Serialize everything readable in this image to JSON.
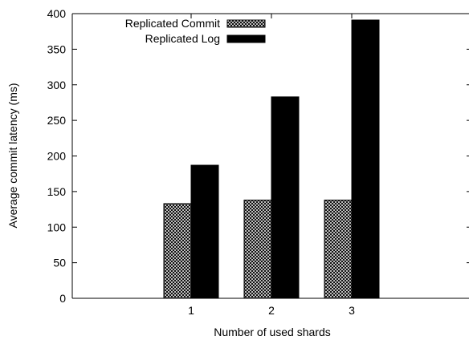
{
  "chart_data": {
    "type": "bar",
    "categories": [
      "1",
      "2",
      "3"
    ],
    "series": [
      {
        "name": "Replicated Commit",
        "values": [
          133,
          138,
          138
        ],
        "pattern": "crosshatch"
      },
      {
        "name": "Replicated Log",
        "values": [
          187,
          283,
          391
        ],
        "color": "#000000"
      }
    ],
    "xlabel": "Number of used shards",
    "ylabel": "Average commit latency (ms)",
    "ylim": [
      0,
      400
    ],
    "yticks": [
      0,
      50,
      100,
      150,
      200,
      250,
      300,
      350,
      400
    ],
    "legend_position": "top-left",
    "grid": false
  }
}
